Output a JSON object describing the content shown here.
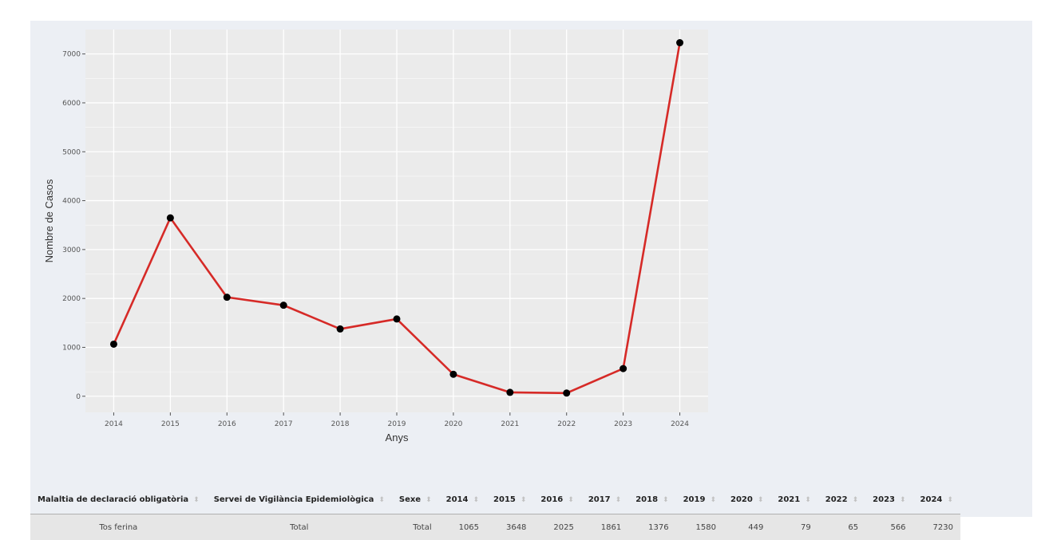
{
  "chart_data": {
    "type": "line",
    "xlabel": "Anys",
    "ylabel": "Nombre de Casos",
    "x": [
      "2014",
      "2015",
      "2016",
      "2017",
      "2018",
      "2019",
      "2020",
      "2021",
      "2022",
      "2023",
      "2024"
    ],
    "series": [
      {
        "values": [
          1065,
          3648,
          2025,
          1861,
          1376,
          1580,
          449,
          79,
          65,
          566,
          7230
        ]
      }
    ],
    "yticks": [
      0,
      1000,
      2000,
      3000,
      4000,
      5000,
      6000,
      7000
    ],
    "ylim": [
      -330,
      7500
    ],
    "grid": true,
    "colors": {
      "line": "#d62a27",
      "point": "#000000",
      "plot_bg": "#ebebeb",
      "grid": "#ffffff"
    }
  },
  "table": {
    "columns": [
      "Malaltia de declaració obligatòria",
      "Servei de Vigilància Epidemiològica",
      "Sexe",
      "2014",
      "2015",
      "2016",
      "2017",
      "2018",
      "2019",
      "2020",
      "2021",
      "2022",
      "2023",
      "2024"
    ],
    "rows": [
      [
        "Tos ferina",
        "Total",
        "Total",
        "1065",
        "3648",
        "2025",
        "1861",
        "1376",
        "1580",
        "449",
        "79",
        "65",
        "566",
        "7230"
      ]
    ],
    "sort_icon": "sort-icon"
  }
}
